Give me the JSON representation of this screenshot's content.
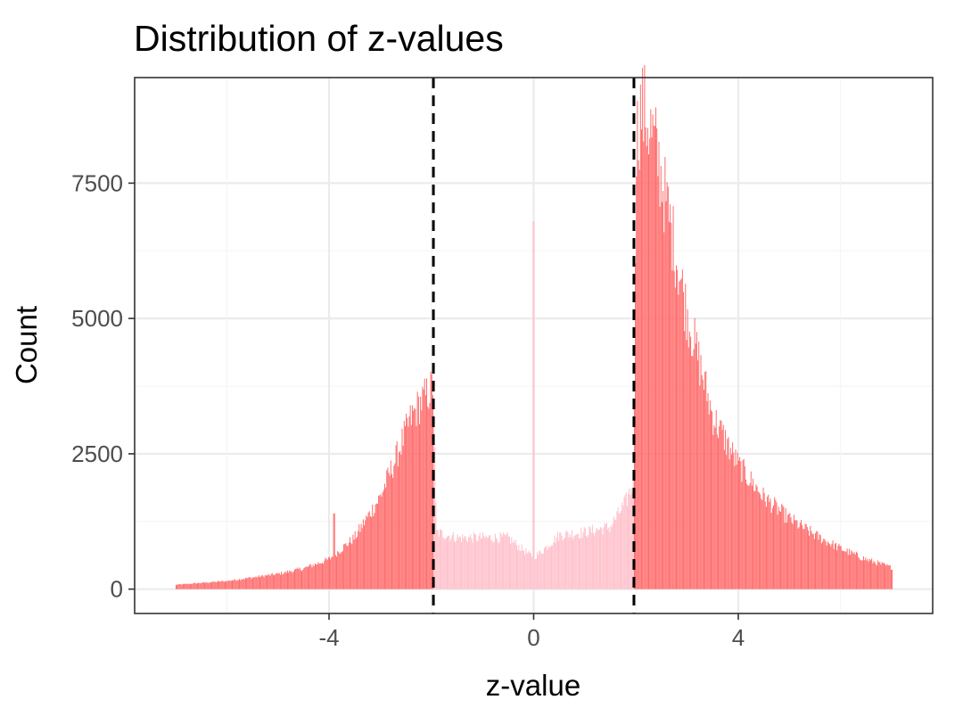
{
  "chart_data": {
    "type": "bar",
    "title": "Distribution of z-values",
    "xlabel": "z-value",
    "ylabel": "Count",
    "xlim": [
      -7.8,
      7.8
    ],
    "ylim": [
      -450,
      9450
    ],
    "x_ticks": [
      -4,
      0,
      4
    ],
    "y_ticks": [
      0,
      2500,
      5000,
      7500
    ],
    "thresholds": [
      -1.96,
      1.96
    ],
    "grid": true,
    "series": [
      {
        "color_outside": "#ff6b6b",
        "color_inside": "#ffc0cb",
        "profile_x": [
          -7.0,
          -6.0,
          -5.0,
          -4.5,
          -4.0,
          -3.5,
          -3.0,
          -2.7,
          -2.4,
          -2.2,
          -2.0,
          -1.96,
          -1.9,
          -1.5,
          -1.0,
          -0.5,
          -0.1,
          0.0,
          0.1,
          0.5,
          1.0,
          1.5,
          1.8,
          1.96,
          2.0,
          2.1,
          2.2,
          2.4,
          2.6,
          3.0,
          3.5,
          4.0,
          4.5,
          5.0,
          5.5,
          6.0,
          6.5,
          7.0
        ],
        "profile_counts": [
          80,
          150,
          280,
          380,
          550,
          950,
          1700,
          2400,
          3150,
          3450,
          3700,
          3800,
          1050,
          950,
          950,
          950,
          650,
          600,
          650,
          1000,
          1050,
          1150,
          1600,
          2000,
          8200,
          8900,
          8750,
          8100,
          7100,
          5100,
          3200,
          2300,
          1700,
          1300,
          1000,
          750,
          550,
          400
        ],
        "spikes": [
          {
            "x": 0.0,
            "value": 6800
          },
          {
            "x": -3.9,
            "value": 1400
          },
          {
            "x": 3.97,
            "value": 2300
          }
        ]
      }
    ]
  }
}
